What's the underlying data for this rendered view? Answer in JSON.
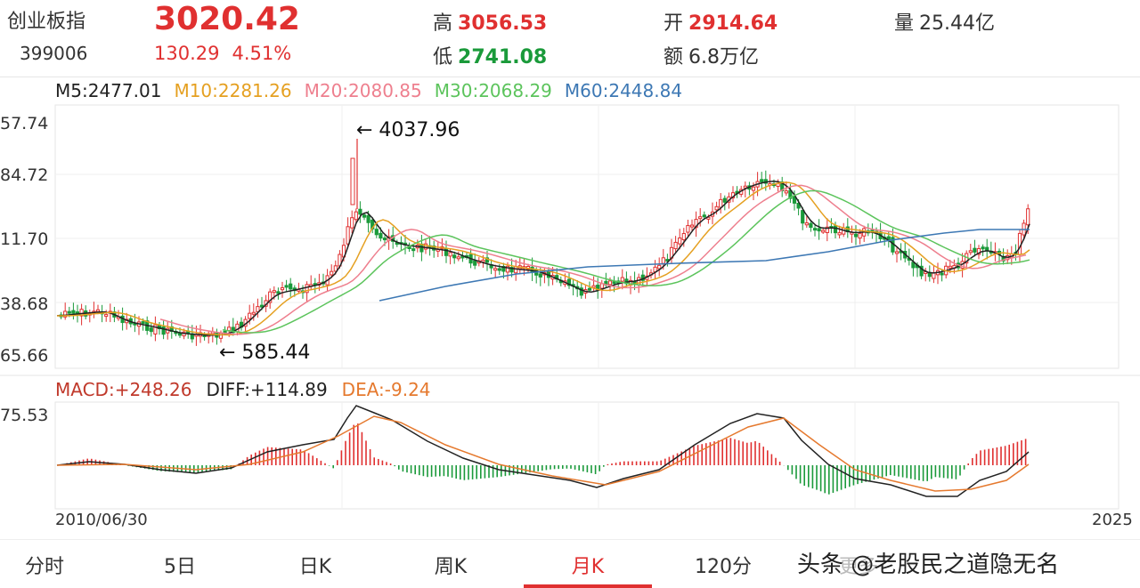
{
  "quote": {
    "name": "创业板指",
    "code": "399006",
    "price": "3020.42",
    "change": "130.29",
    "change_pct": "4.51%",
    "high_label": "高",
    "high": "3056.53",
    "low_label": "低",
    "low": "2741.08",
    "open_label": "开",
    "open": "2914.64",
    "amount_label": "额",
    "amount": "6.8万亿",
    "volume_label": "量",
    "volume": "25.44亿"
  },
  "ma_legend": {
    "ma5": "M5:2477.01",
    "ma10": "M10:2281.26",
    "ma20": "M20:2080.85",
    "ma30": "M30:2068.29",
    "ma60": "M60:2448.84"
  },
  "price_axis": [
    "57.74",
    "84.72",
    "11.70",
    "38.68",
    "65.66"
  ],
  "annotations": {
    "max": "← 4037.96",
    "min": "← 585.44"
  },
  "macd_legend": {
    "macd": "MACD:+248.26",
    "diff": "DIFF:+114.89",
    "dea": "DEA:-9.24"
  },
  "macd_axis": "75.53",
  "dates": {
    "start": "2010/06/30",
    "end": "2025"
  },
  "tabs": [
    {
      "label": "分时"
    },
    {
      "label": "5日"
    },
    {
      "label": "日K"
    },
    {
      "label": "周K"
    },
    {
      "label": "月K"
    },
    {
      "label": "120分"
    },
    {
      "label": "更多"
    }
  ],
  "active_tab": 4,
  "watermark": "头条 @老股民之道隐无名",
  "colors": {
    "up": "#e03030",
    "down": "#1a9a3a",
    "ma5": "#222222",
    "ma10": "#e5a021",
    "ma20": "#ee7f8e",
    "ma30": "#5cc45c",
    "ma60": "#3d78b4",
    "dea": "#e5792e"
  }
}
